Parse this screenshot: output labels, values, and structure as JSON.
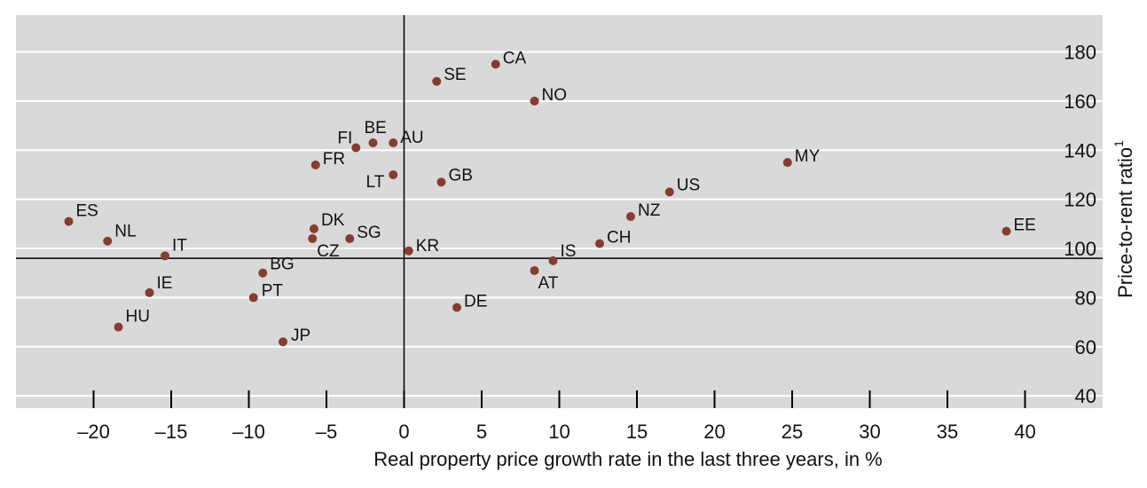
{
  "chart_data": {
    "type": "scatter",
    "xlabel": "Real property price growth rate in the last three years, in %",
    "ylabel": "Price-to-rent ratio",
    "ylabel_superscript": "1",
    "xlim": [
      -25,
      45
    ],
    "ylim": [
      35,
      195
    ],
    "x_ticks": [
      -20,
      -15,
      -10,
      -5,
      0,
      5,
      10,
      15,
      20,
      25,
      30,
      35,
      40
    ],
    "x_tick_labels": [
      "–20",
      "–15",
      "–10",
      "–5",
      "0",
      "5",
      "10",
      "15",
      "20",
      "25",
      "30",
      "35",
      "40"
    ],
    "y_ticks": [
      40,
      60,
      80,
      100,
      120,
      140,
      160,
      180
    ],
    "y_tick_labels": [
      "40",
      "60",
      "80",
      "100",
      "120",
      "140",
      "160",
      "180"
    ],
    "reference_lines": {
      "x": 0,
      "y": 96
    },
    "grid": "horizontal",
    "marker_color": "#8b3a2e",
    "background_color": "#d9d9d9",
    "points": [
      {
        "label": "ES",
        "x": -21.6,
        "y": 111
      },
      {
        "label": "NL",
        "x": -19.1,
        "y": 103
      },
      {
        "label": "IT",
        "x": -15.4,
        "y": 97
      },
      {
        "label": "IE",
        "x": -16.4,
        "y": 82
      },
      {
        "label": "HU",
        "x": -18.4,
        "y": 68
      },
      {
        "label": "BG",
        "x": -9.1,
        "y": 90
      },
      {
        "label": "PT",
        "x": -9.7,
        "y": 80
      },
      {
        "label": "JP",
        "x": -7.8,
        "y": 62
      },
      {
        "label": "DK",
        "x": -5.8,
        "y": 108
      },
      {
        "label": "CZ",
        "x": -5.9,
        "y": 104
      },
      {
        "label": "SG",
        "x": -3.5,
        "y": 104
      },
      {
        "label": "FR",
        "x": -5.7,
        "y": 134
      },
      {
        "label": "FI",
        "x": -3.1,
        "y": 141
      },
      {
        "label": "BE",
        "x": -2.0,
        "y": 143
      },
      {
        "label": "AU",
        "x": -0.7,
        "y": 143
      },
      {
        "label": "LT",
        "x": -0.7,
        "y": 130
      },
      {
        "label": "KR",
        "x": 0.3,
        "y": 99
      },
      {
        "label": "SE",
        "x": 2.1,
        "y": 168
      },
      {
        "label": "CA",
        "x": 5.9,
        "y": 175
      },
      {
        "label": "NO",
        "x": 8.4,
        "y": 160
      },
      {
        "label": "GB",
        "x": 2.4,
        "y": 127
      },
      {
        "label": "DE",
        "x": 3.4,
        "y": 76
      },
      {
        "label": "AT",
        "x": 8.4,
        "y": 91
      },
      {
        "label": "IS",
        "x": 9.6,
        "y": 95
      },
      {
        "label": "CH",
        "x": 12.6,
        "y": 102
      },
      {
        "label": "NZ",
        "x": 14.6,
        "y": 113
      },
      {
        "label": "US",
        "x": 17.1,
        "y": 123
      },
      {
        "label": "MY",
        "x": 24.7,
        "y": 135
      },
      {
        "label": "EE",
        "x": 38.8,
        "y": 107
      }
    ]
  }
}
